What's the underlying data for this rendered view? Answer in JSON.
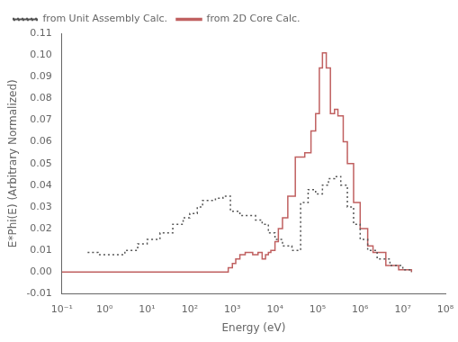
{
  "chart_data": {
    "type": "step",
    "xlabel": "Energy (eV)",
    "ylabel": "E*Phi(E) (Arbitrary Normalized)",
    "log": "x",
    "grid": false,
    "legend": "upper left",
    "xlim": [
      0.1,
      100000000
    ],
    "xticks": [
      {
        "value": 0.1,
        "label": "10⁻¹"
      },
      {
        "value": 1,
        "label": "10⁰"
      },
      {
        "value": 10,
        "label": "10¹"
      },
      {
        "value": 100,
        "label": "10²"
      },
      {
        "value": 1000,
        "label": "10³"
      },
      {
        "value": 10000,
        "label": "10⁴"
      },
      {
        "value": 100000,
        "label": "10⁵"
      },
      {
        "value": 1000000,
        "label": "10⁶"
      },
      {
        "value": 10000000,
        "label": "10⁷"
      },
      {
        "value": 100000000,
        "label": "10⁸"
      }
    ],
    "ylim": [
      -0.01,
      0.11
    ],
    "yticks": [
      -0.01,
      {
        "value": 0,
        "label": "0.00"
      },
      0.01,
      0.02,
      0.03,
      0.04,
      0.05,
      0.06,
      0.07,
      0.08,
      0.09,
      {
        "value": 0.1,
        "label": "0.10"
      },
      0.11
    ],
    "series": [
      {
        "name": "from Unit Assembly Calc.",
        "color": "#555555",
        "line_style": "dotted",
        "x": [
          0.4,
          0.7,
          1.5,
          3.0,
          6.0,
          10.0,
          20.0,
          40.0,
          70.0,
          100.0,
          150.0,
          200.0,
          300.0,
          400.0,
          600.0,
          900.0,
          1500.0,
          2500.0,
          3500.0,
          5000.0,
          7000.0,
          10000.0,
          15000.0,
          25000.0,
          40000.0,
          60000.0,
          90000.0,
          130000.0,
          180000.0,
          250000.0,
          350000.0,
          500000.0,
          700000.0,
          1000000.0,
          1500000.0,
          2500000.0,
          5000000.0,
          10000000.0,
          16000000.0
        ],
        "values": [
          0.009,
          0.008,
          0.008,
          0.01,
          0.013,
          0.015,
          0.018,
          0.022,
          0.025,
          0.027,
          0.03,
          0.033,
          0.033,
          0.034,
          0.035,
          0.028,
          0.026,
          0.026,
          0.024,
          0.022,
          0.018,
          0.015,
          0.012,
          0.01,
          0.032,
          0.038,
          0.036,
          0.04,
          0.043,
          0.044,
          0.04,
          0.03,
          0.022,
          0.015,
          0.01,
          0.006,
          0.003,
          0.001,
          0.0
        ]
      },
      {
        "name": "from 2D Core Calc.",
        "color": "#C06060",
        "line_style": "solid",
        "x": [
          0.1,
          10.0,
          100.0,
          500.0,
          800.0,
          1000.0,
          1200.0,
          1500.0,
          2000.0,
          3000.0,
          4000.0,
          5000.0,
          6000.0,
          7000.0,
          8000.0,
          10000.0,
          12000.0,
          15000.0,
          20000.0,
          30000.0,
          50000.0,
          70000.0,
          90000.0,
          110000.0,
          130000.0,
          160000.0,
          200000.0,
          250000.0,
          300000.0,
          400000.0,
          500000.0,
          700000.0,
          1000000.0,
          1500000.0,
          2000000.0,
          4000000.0,
          8000000.0,
          16000000.0
        ],
        "values": [
          0.0,
          0.0,
          0.0,
          0.0,
          0.002,
          0.004,
          0.006,
          0.008,
          0.009,
          0.008,
          0.009,
          0.006,
          0.008,
          0.009,
          0.01,
          0.014,
          0.02,
          0.025,
          0.035,
          0.053,
          0.055,
          0.065,
          0.073,
          0.094,
          0.101,
          0.094,
          0.073,
          0.075,
          0.072,
          0.06,
          0.05,
          0.032,
          0.02,
          0.012,
          0.009,
          0.003,
          0.001,
          0.0
        ]
      }
    ]
  }
}
